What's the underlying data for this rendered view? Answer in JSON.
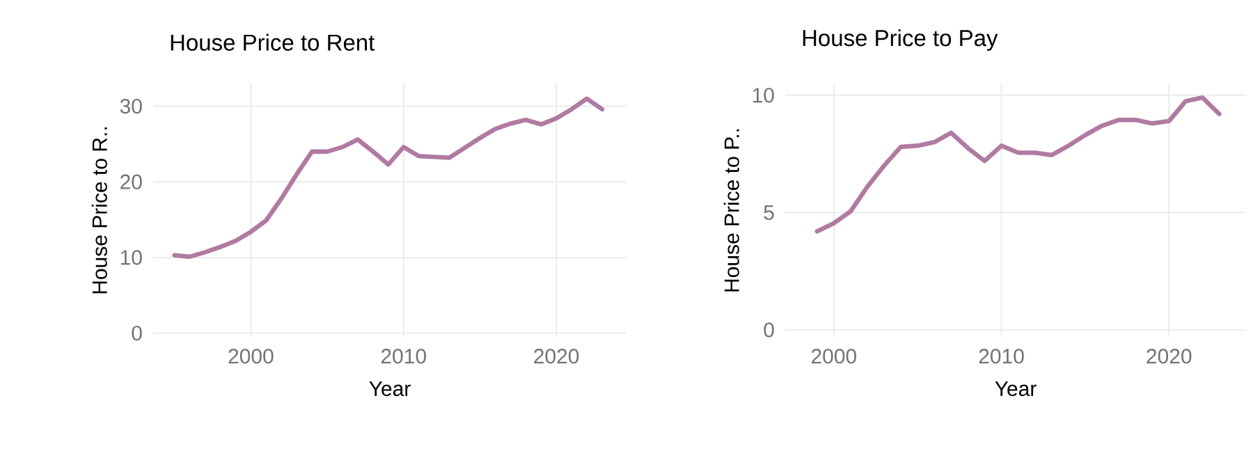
{
  "chart_data": [
    {
      "type": "line",
      "title": "House Price to Rent",
      "xlabel": "Year",
      "ylabel": "House Price to R..",
      "x": [
        1995,
        1996,
        1997,
        1998,
        1999,
        2000,
        2001,
        2002,
        2003,
        2004,
        2005,
        2006,
        2007,
        2008,
        2009,
        2010,
        2011,
        2012,
        2013,
        2014,
        2015,
        2016,
        2017,
        2018,
        2019,
        2020,
        2021,
        2022,
        2023
      ],
      "series": [
        {
          "color": "#b07aa1",
          "values": [
            10.3,
            10.1,
            10.7,
            11.4,
            12.2,
            13.4,
            14.9,
            17.8,
            21.0,
            24.0,
            24.0,
            24.6,
            25.6,
            24.0,
            22.3,
            24.6,
            23.4,
            23.3,
            23.2,
            24.5,
            25.8,
            27.0,
            27.7,
            28.2,
            27.6,
            28.4,
            29.6,
            31.0,
            29.6
          ]
        }
      ],
      "xlim": [
        1993.6,
        2024.6
      ],
      "ylim": [
        -0.5,
        33
      ],
      "xticks": [
        2000,
        2010,
        2020
      ],
      "yticks": [
        0,
        10,
        20,
        30
      ],
      "grid": true,
      "line_style": "solid"
    },
    {
      "type": "line",
      "title": "House Price to Pay",
      "xlabel": "Year",
      "ylabel": "House Price to P..",
      "x": [
        1999,
        2000,
        2001,
        2002,
        2003,
        2004,
        2005,
        2006,
        2007,
        2008,
        2009,
        2010,
        2011,
        2012,
        2013,
        2014,
        2015,
        2016,
        2017,
        2018,
        2019,
        2020,
        2021,
        2022,
        2023
      ],
      "series": [
        {
          "color": "#b07aa1",
          "values": [
            4.2,
            4.55,
            5.05,
            6.1,
            7.0,
            7.8,
            7.85,
            8.0,
            8.4,
            7.75,
            7.2,
            7.85,
            7.55,
            7.55,
            7.45,
            7.85,
            8.3,
            8.7,
            8.95,
            8.95,
            8.8,
            8.9,
            9.75,
            9.9,
            9.2
          ]
        }
      ],
      "xlim": [
        1997.1,
        2024.6
      ],
      "ylim": [
        -0.3,
        10.5
      ],
      "xticks": [
        2000,
        2010,
        2020
      ],
      "yticks": [
        0,
        5,
        10
      ],
      "grid": true,
      "line_style": "solid"
    }
  ]
}
